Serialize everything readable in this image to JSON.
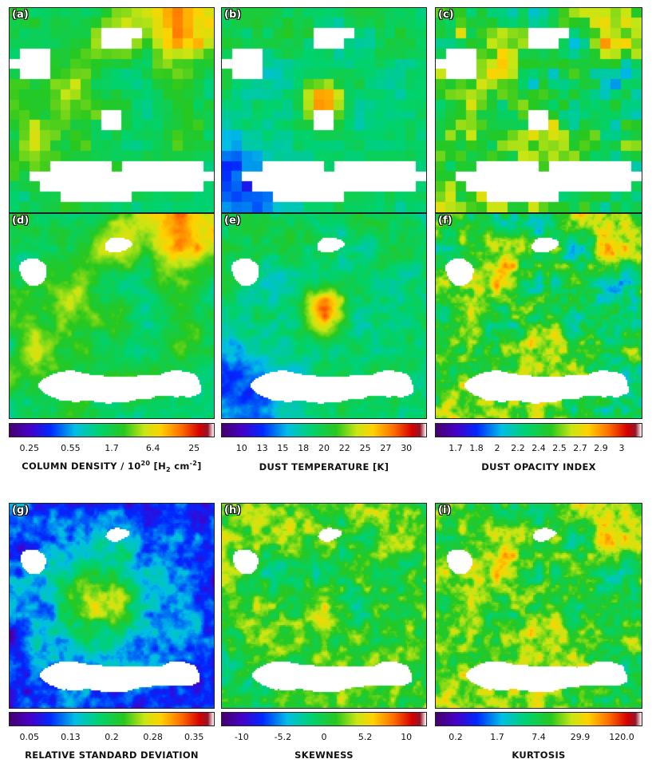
{
  "chart_data": [
    {
      "type": "heatmap",
      "panel": "(a)",
      "quantity": "column_density",
      "resolution": "coarse"
    },
    {
      "type": "heatmap",
      "panel": "(b)",
      "quantity": "dust_temperature",
      "resolution": "coarse"
    },
    {
      "type": "heatmap",
      "panel": "(c)",
      "quantity": "dust_opacity_index",
      "resolution": "coarse"
    },
    {
      "type": "heatmap",
      "panel": "(d)",
      "quantity": "column_density",
      "resolution": "fine"
    },
    {
      "type": "heatmap",
      "panel": "(e)",
      "quantity": "dust_temperature",
      "resolution": "fine"
    },
    {
      "type": "heatmap",
      "panel": "(f)",
      "quantity": "dust_opacity_index",
      "resolution": "fine"
    },
    {
      "type": "heatmap",
      "panel": "(g)",
      "quantity": "relative_standard_deviation",
      "resolution": "fine"
    },
    {
      "type": "heatmap",
      "panel": "(h)",
      "quantity": "skewness",
      "resolution": "fine"
    },
    {
      "type": "heatmap",
      "panel": "(i)",
      "quantity": "kurtosis",
      "resolution": "fine"
    }
  ],
  "panels": [
    "(a)",
    "(b)",
    "(c)",
    "(d)",
    "(e)",
    "(f)",
    "(g)",
    "(h)",
    "(i)"
  ],
  "colorbars": [
    {
      "title_prefix": "COLUMN DENSITY / 10",
      "title_sup1": "20",
      "title_mid": "  [H",
      "title_sub": "2",
      "title_mid2": " cm",
      "title_sup2": "-2",
      "title_end": "]",
      "ticks": [
        "0.25",
        "0.55",
        "1.7",
        "6.4",
        "25"
      ]
    },
    {
      "title": "DUST TEMPERATURE  [K]",
      "ticks": [
        "10",
        "13",
        "15",
        "18",
        "20",
        "22",
        "25",
        "27",
        "30"
      ]
    },
    {
      "title": "DUST OPACITY INDEX",
      "ticks": [
        "1.7",
        "1.8",
        "2",
        "2.2",
        "2.4",
        "2.5",
        "2.7",
        "2.9",
        "3"
      ]
    },
    {
      "title": "RELATIVE STANDARD DEVIATION",
      "ticks": [
        "0.05",
        "0.13",
        "0.2",
        "0.28",
        "0.35"
      ]
    },
    {
      "title": "SKEWNESS",
      "ticks": [
        "-10",
        "-5.2",
        "0",
        "5.2",
        "10"
      ]
    },
    {
      "title": "KURTOSIS",
      "ticks": [
        "0.2",
        "1.7",
        "7.4",
        "29.9",
        "120.0"
      ]
    }
  ]
}
